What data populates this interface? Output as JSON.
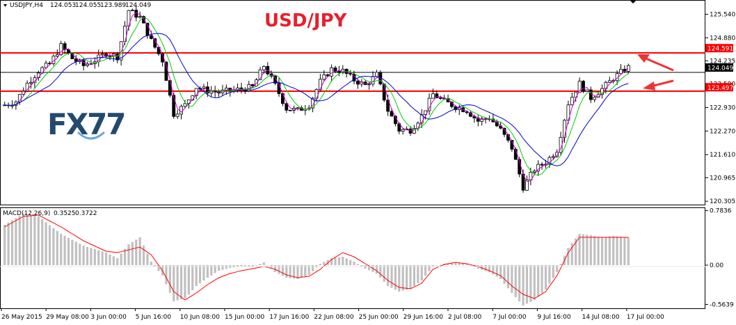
{
  "header": {
    "symbol_info": "USDJPY,H4",
    "ohlc_values": [
      "124.053",
      "124.055",
      "123.989",
      "124.049"
    ]
  },
  "macd_header": {
    "label": "MACD(12,26,9)",
    "values": [
      "0.3525",
      "0.3722"
    ]
  },
  "chart_title": "USD/JPY",
  "logo": {
    "text": "FX77"
  },
  "colors": {
    "background": "#ffffff",
    "candle": "#000000",
    "level_line": "#ff0000",
    "current_price_line": "#000000",
    "ma_fast": "#cc00cc",
    "ma_medium": "#00cc00",
    "ma_slow": "#0000cc",
    "macd_histogram": "#c0c0c0",
    "macd_signal": "#ff0000",
    "title": "#e8202a",
    "arrow": "#ee3333",
    "price_tag_red": "#ff0000",
    "price_tag_black": "#000000"
  },
  "chart_data": [
    {
      "type": "candlestick",
      "symbol": "USDJPY",
      "timeframe": "H4",
      "price_axis_ticks": [
        "125.540",
        "124.880",
        "124.235",
        "123.590",
        "122.930",
        "122.270",
        "121.610",
        "120.965",
        "120.305"
      ],
      "time_axis_labels": [
        "26 May 2015",
        "29 May 08:00",
        "3 Jun 00:00",
        "5 Jun 16:00",
        "10 Jun 08:00",
        "15 Jun 00:00",
        "17 Jun 16:00",
        "22 Jun 08:00",
        "25 Jun 00:00",
        "29 Jun 16:00",
        "2 Jul 08:00",
        "7 Jul 00:00",
        "9 Jul 16:00",
        "14 Jul 08:00",
        "17 Jul 00:00"
      ],
      "ylim": [
        120.25,
        125.9
      ],
      "horizontal_levels": [
        {
          "value": 124.591,
          "label": "124.591",
          "color": "#ff0000"
        },
        {
          "value": 123.497,
          "label": "123.497",
          "color": "#ff0000"
        }
      ],
      "current_price": {
        "value": 124.049,
        "label": "124.049"
      },
      "price_path": [
        [
          0,
          123.0
        ],
        [
          3,
          123.1
        ],
        [
          6,
          123.6
        ],
        [
          9,
          123.95
        ],
        [
          12,
          124.15
        ],
        [
          15,
          124.65
        ],
        [
          18,
          124.3
        ],
        [
          21,
          124.1
        ],
        [
          24,
          124.25
        ],
        [
          27,
          124.45
        ],
        [
          30,
          124.35
        ],
        [
          33,
          125.65
        ],
        [
          36,
          125.45
        ],
        [
          39,
          124.8
        ],
        [
          42,
          124.25
        ],
        [
          45,
          122.75
        ],
        [
          48,
          123.0
        ],
        [
          51,
          123.5
        ],
        [
          54,
          123.4
        ],
        [
          57,
          123.35
        ],
        [
          60,
          123.4
        ],
        [
          63,
          123.45
        ],
        [
          66,
          123.5
        ],
        [
          69,
          124.1
        ],
        [
          72,
          123.55
        ],
        [
          75,
          122.9
        ],
        [
          78,
          122.85
        ],
        [
          81,
          123.0
        ],
        [
          84,
          123.65
        ],
        [
          87,
          124.0
        ],
        [
          90,
          123.95
        ],
        [
          93,
          123.7
        ],
        [
          96,
          123.55
        ],
        [
          99,
          123.85
        ],
        [
          102,
          122.85
        ],
        [
          105,
          122.3
        ],
        [
          108,
          122.3
        ],
        [
          111,
          122.7
        ],
        [
          114,
          123.3
        ],
        [
          117,
          123.1
        ],
        [
          120,
          122.95
        ],
        [
          123,
          122.85
        ],
        [
          126,
          122.55
        ],
        [
          129,
          122.65
        ],
        [
          132,
          122.3
        ],
        [
          135,
          121.8
        ],
        [
          138,
          120.7
        ],
        [
          141,
          121.2
        ],
        [
          144,
          121.4
        ],
        [
          147,
          121.75
        ],
        [
          150,
          123.05
        ],
        [
          153,
          123.6
        ],
        [
          156,
          123.2
        ],
        [
          159,
          123.45
        ],
        [
          162,
          123.75
        ],
        [
          165,
          124.0
        ],
        [
          166,
          124.05
        ]
      ],
      "ma_series": [
        {
          "color": "#cc00cc",
          "period": 3
        },
        {
          "color": "#00cc00",
          "period": 6
        },
        {
          "color": "#0000cc",
          "period": 13
        }
      ]
    },
    {
      "type": "macd",
      "label": "MACD(12,26,9)",
      "y_axis_ticks": [
        "0.7836",
        "0.00",
        "-0.5639"
      ],
      "ylim": [
        -0.6,
        0.8
      ],
      "histogram_path": [
        [
          0,
          0.58
        ],
        [
          5,
          0.74
        ],
        [
          9,
          0.7
        ],
        [
          15,
          0.45
        ],
        [
          21,
          0.28
        ],
        [
          27,
          0.18
        ],
        [
          30,
          0.1
        ],
        [
          33,
          0.3
        ],
        [
          36,
          0.4
        ],
        [
          39,
          0.05
        ],
        [
          42,
          -0.15
        ],
        [
          45,
          -0.52
        ],
        [
          48,
          -0.48
        ],
        [
          51,
          -0.3
        ],
        [
          54,
          -0.18
        ],
        [
          57,
          -0.08
        ],
        [
          60,
          -0.04
        ],
        [
          63,
          -0.02
        ],
        [
          66,
          -0.02
        ],
        [
          69,
          0.04
        ],
        [
          72,
          -0.1
        ],
        [
          75,
          -0.18
        ],
        [
          78,
          -0.2
        ],
        [
          81,
          -0.14
        ],
        [
          84,
          0.02
        ],
        [
          87,
          0.1
        ],
        [
          90,
          0.12
        ],
        [
          93,
          0.05
        ],
        [
          96,
          -0.05
        ],
        [
          99,
          -0.12
        ],
        [
          102,
          -0.3
        ],
        [
          105,
          -0.38
        ],
        [
          108,
          -0.34
        ],
        [
          111,
          -0.22
        ],
        [
          114,
          -0.02
        ],
        [
          117,
          0.02
        ],
        [
          120,
          0.04
        ],
        [
          123,
          0.02
        ],
        [
          126,
          -0.05
        ],
        [
          129,
          -0.1
        ],
        [
          132,
          -0.2
        ],
        [
          135,
          -0.4
        ],
        [
          138,
          -0.58
        ],
        [
          141,
          -0.5
        ],
        [
          144,
          -0.35
        ],
        [
          147,
          -0.1
        ],
        [
          150,
          0.25
        ],
        [
          153,
          0.45
        ],
        [
          156,
          0.43
        ],
        [
          159,
          0.4
        ],
        [
          162,
          0.42
        ],
        [
          166,
          0.4
        ]
      ],
      "signal_path": [
        [
          0,
          0.55
        ],
        [
          5,
          0.7
        ],
        [
          9,
          0.72
        ],
        [
          15,
          0.55
        ],
        [
          21,
          0.35
        ],
        [
          27,
          0.2
        ],
        [
          30,
          0.18
        ],
        [
          33,
          0.22
        ],
        [
          36,
          0.26
        ],
        [
          39,
          0.15
        ],
        [
          42,
          -0.08
        ],
        [
          45,
          -0.38
        ],
        [
          48,
          -0.5
        ],
        [
          51,
          -0.4
        ],
        [
          54,
          -0.28
        ],
        [
          57,
          -0.18
        ],
        [
          60,
          -0.12
        ],
        [
          63,
          -0.08
        ],
        [
          66,
          -0.05
        ],
        [
          69,
          -0.02
        ],
        [
          72,
          -0.06
        ],
        [
          75,
          -0.14
        ],
        [
          78,
          -0.18
        ],
        [
          81,
          -0.16
        ],
        [
          84,
          -0.06
        ],
        [
          87,
          0.08
        ],
        [
          90,
          0.18
        ],
        [
          93,
          0.12
        ],
        [
          96,
          0.02
        ],
        [
          99,
          -0.08
        ],
        [
          102,
          -0.22
        ],
        [
          105,
          -0.32
        ],
        [
          108,
          -0.34
        ],
        [
          111,
          -0.26
        ],
        [
          114,
          -0.06
        ],
        [
          117,
          0.01
        ],
        [
          120,
          0.04
        ],
        [
          123,
          0.02
        ],
        [
          126,
          -0.02
        ],
        [
          129,
          -0.08
        ],
        [
          132,
          -0.15
        ],
        [
          135,
          -0.3
        ],
        [
          138,
          -0.42
        ],
        [
          141,
          -0.48
        ],
        [
          144,
          -0.38
        ],
        [
          147,
          -0.15
        ],
        [
          150,
          0.18
        ],
        [
          153,
          0.4
        ],
        [
          156,
          0.4
        ],
        [
          159,
          0.4
        ],
        [
          162,
          0.4
        ],
        [
          166,
          0.4
        ]
      ]
    }
  ]
}
